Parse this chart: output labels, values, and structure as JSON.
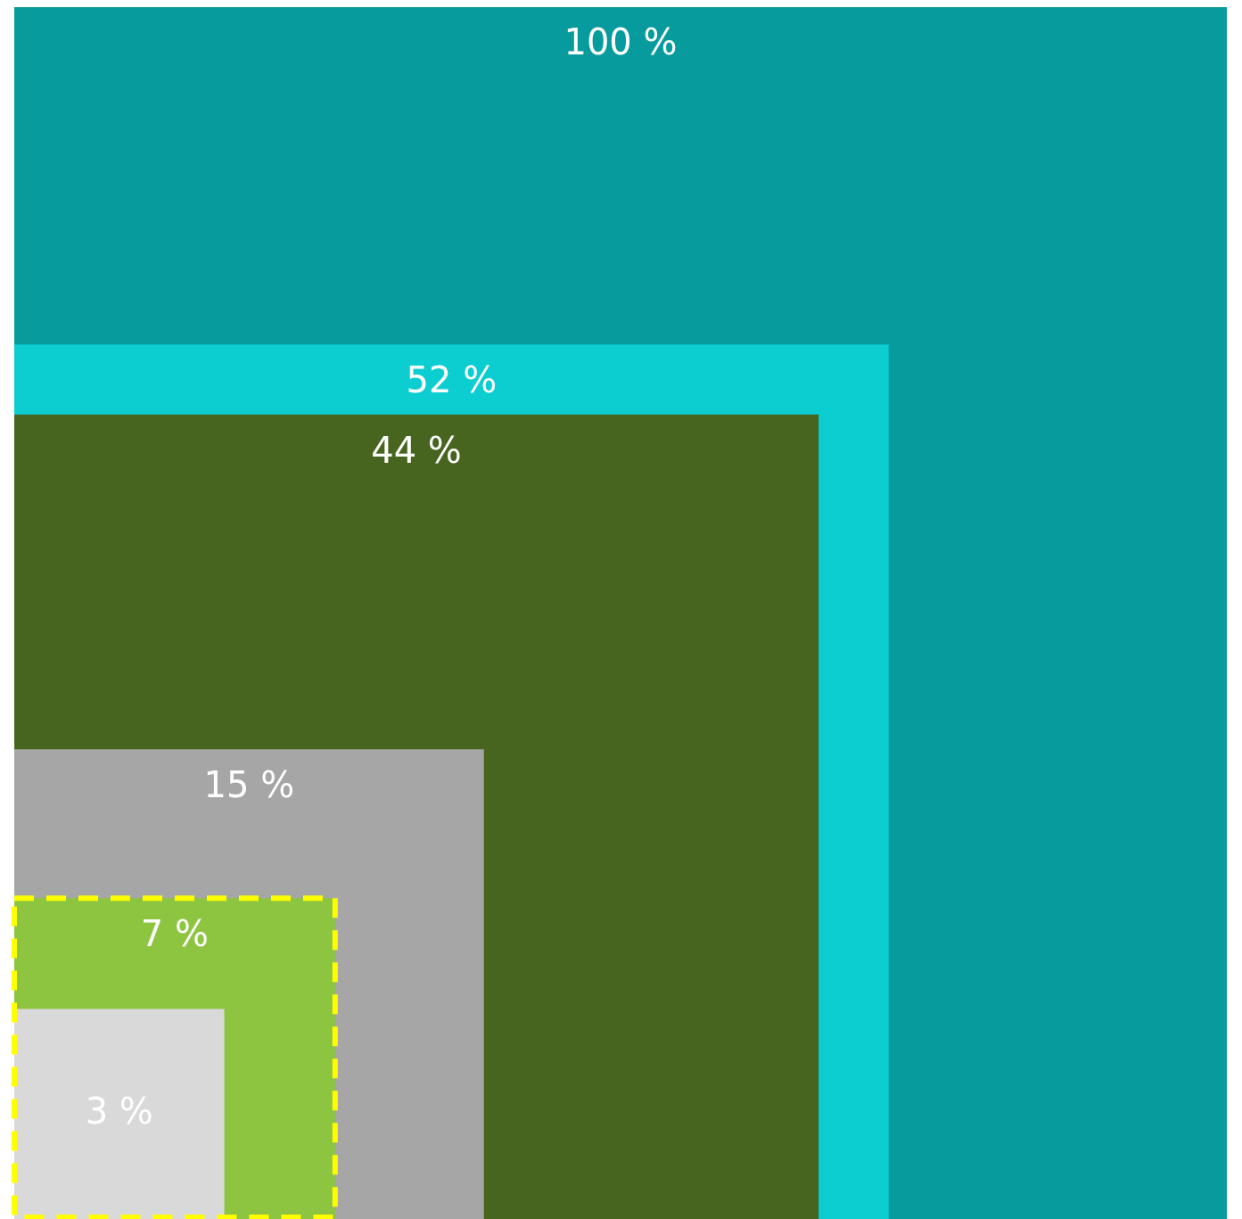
{
  "chart_data": {
    "type": "other",
    "categories": [
      null,
      null,
      null,
      null,
      null,
      null
    ],
    "values": [
      100,
      52,
      44,
      15,
      7,
      3
    ],
    "value_labels": [
      "100 %",
      "52 %",
      "44 %",
      "15 %",
      "7 %",
      "3 %"
    ],
    "colors": [
      "#089b9d",
      "#0ccdd0",
      "#47651f",
      "#a6a6a6",
      "#8dc540",
      "#d9d9d9"
    ]
  }
}
